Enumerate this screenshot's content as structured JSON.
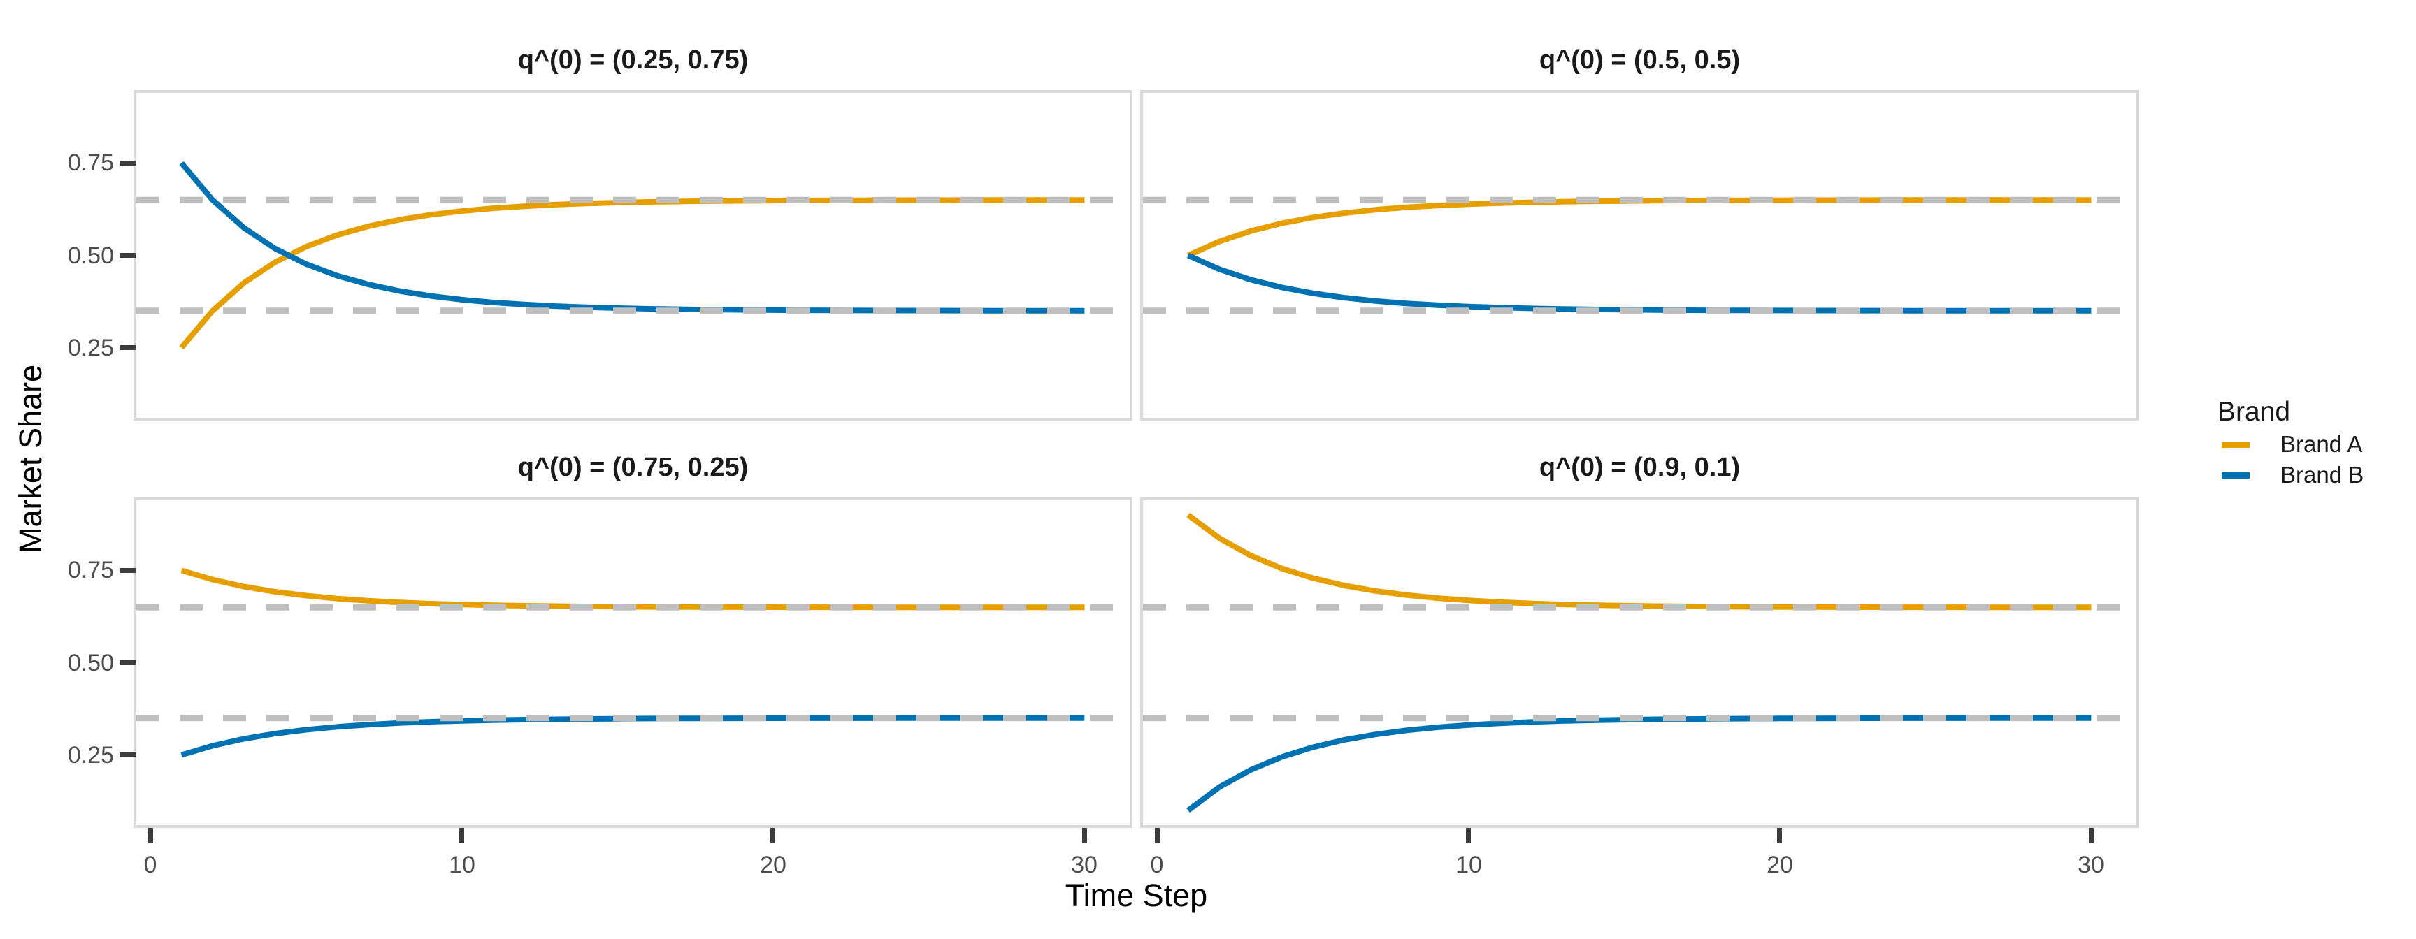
{
  "chart_data": {
    "type": "line",
    "xlabel": "Time Step",
    "ylabel": "Market Share",
    "xlim": [
      -0.45,
      31.45
    ],
    "ylim": [
      0.06,
      0.94
    ],
    "grid": "off",
    "x_ticks": [
      0,
      10,
      20,
      30
    ],
    "y_ticks": [
      {
        "value": 0.75,
        "label": "0.75"
      },
      {
        "value": 0.5,
        "label": "0.50"
      },
      {
        "value": 0.25,
        "label": "0.25"
      }
    ],
    "equilibrium_lines": [
      0.65,
      0.35
    ],
    "x": [
      1,
      2,
      3,
      4,
      5,
      6,
      7,
      8,
      9,
      10,
      11,
      12,
      13,
      14,
      15,
      16,
      17,
      18,
      19,
      20,
      21,
      22,
      23,
      24,
      25,
      26,
      27,
      28,
      29,
      30
    ],
    "facets": [
      {
        "title": "q^(0) = (0.25, 0.75)",
        "series": [
          {
            "name": "Brand A",
            "values": [
              0.25,
              0.35,
              0.425,
              0.4813,
              0.5234,
              0.5551,
              0.5788,
              0.5966,
              0.61,
              0.62,
              0.6275,
              0.6331,
              0.6373,
              0.6405,
              0.6429,
              0.6447,
              0.646,
              0.647,
              0.6477,
              0.6483,
              0.6487,
              0.649,
              0.6493,
              0.6495,
              0.6496,
              0.6497,
              0.6498,
              0.6498,
              0.6499,
              0.6499
            ]
          },
          {
            "name": "Brand B",
            "values": [
              0.75,
              0.65,
              0.575,
              0.5188,
              0.4766,
              0.4449,
              0.4212,
              0.4034,
              0.39,
              0.38,
              0.3725,
              0.3669,
              0.3627,
              0.3595,
              0.3571,
              0.3553,
              0.354,
              0.353,
              0.3523,
              0.3517,
              0.3513,
              0.351,
              0.3507,
              0.3505,
              0.3504,
              0.3503,
              0.3502,
              0.3502,
              0.3501,
              0.3501
            ]
          }
        ]
      },
      {
        "title": "q^(0) = (0.5, 0.5)",
        "series": [
          {
            "name": "Brand A",
            "values": [
              0.5,
              0.5375,
              0.5656,
              0.5867,
              0.6025,
              0.6144,
              0.6233,
              0.63,
              0.635,
              0.6387,
              0.6416,
              0.6437,
              0.6452,
              0.6464,
              0.6473,
              0.648,
              0.6485,
              0.6489,
              0.6492,
              0.6494,
              0.6495,
              0.6496,
              0.6497,
              0.6498,
              0.6499,
              0.6499,
              0.6499,
              0.6499,
              0.65,
              0.65
            ]
          },
          {
            "name": "Brand B",
            "values": [
              0.5,
              0.4625,
              0.4344,
              0.4133,
              0.3975,
              0.3856,
              0.3767,
              0.37,
              0.365,
              0.3613,
              0.3584,
              0.3563,
              0.3548,
              0.3536,
              0.3527,
              0.352,
              0.3515,
              0.3511,
              0.3508,
              0.3506,
              0.3505,
              0.3504,
              0.3503,
              0.3502,
              0.3501,
              0.3501,
              0.3501,
              0.3501,
              0.35,
              0.35
            ]
          }
        ]
      },
      {
        "title": "q^(0) = (0.75, 0.25)",
        "series": [
          {
            "name": "Brand A",
            "values": [
              0.75,
              0.725,
              0.7063,
              0.6922,
              0.6816,
              0.6737,
              0.6678,
              0.6633,
              0.66,
              0.6575,
              0.6556,
              0.6542,
              0.6532,
              0.6524,
              0.6518,
              0.6513,
              0.651,
              0.6508,
              0.6506,
              0.6504,
              0.6503,
              0.6502,
              0.6502,
              0.6501,
              0.6501,
              0.6501,
              0.6501,
              0.65,
              0.65,
              0.65
            ]
          },
          {
            "name": "Brand B",
            "values": [
              0.25,
              0.275,
              0.2938,
              0.3078,
              0.3184,
              0.3263,
              0.3322,
              0.3367,
              0.34,
              0.3425,
              0.3444,
              0.3458,
              0.3468,
              0.3476,
              0.3482,
              0.3487,
              0.349,
              0.3492,
              0.3494,
              0.3496,
              0.3497,
              0.3498,
              0.3498,
              0.3499,
              0.3499,
              0.3499,
              0.3499,
              0.35,
              0.35,
              0.35
            ]
          }
        ]
      },
      {
        "title": "q^(0) = (0.9, 0.1)",
        "series": [
          {
            "name": "Brand A",
            "values": [
              0.9,
              0.8375,
              0.7906,
              0.7555,
              0.7291,
              0.7093,
              0.6945,
              0.6834,
              0.675,
              0.6688,
              0.6641,
              0.6606,
              0.6579,
              0.6559,
              0.6545,
              0.6533,
              0.6525,
              0.6519,
              0.6514,
              0.6511,
              0.6508,
              0.6506,
              0.6504,
              0.6503,
              0.6503,
              0.6502,
              0.6501,
              0.6501,
              0.6501,
              0.6501
            ]
          },
          {
            "name": "Brand B",
            "values": [
              0.1,
              0.1625,
              0.2094,
              0.2445,
              0.2709,
              0.2907,
              0.3055,
              0.3166,
              0.325,
              0.3312,
              0.3359,
              0.3394,
              0.3421,
              0.3441,
              0.3455,
              0.3467,
              0.3475,
              0.3481,
              0.3486,
              0.3489,
              0.3492,
              0.3494,
              0.3496,
              0.3497,
              0.3497,
              0.3498,
              0.3499,
              0.3499,
              0.3499,
              0.3499
            ]
          }
        ]
      }
    ],
    "legend": {
      "title": "Brand",
      "position": "right",
      "entries": [
        {
          "label": "Brand A",
          "color": "#E69F00"
        },
        {
          "label": "Brand B",
          "color": "#0072B2"
        }
      ]
    },
    "colors": {
      "brand_a": "#E69F00",
      "brand_b": "#0072B2",
      "equilibrium_dash": "#BFBFBF",
      "panel_border": "#D9D9D9",
      "tick_mark": "#3C3C3C",
      "tick_label": "#4D4D4D",
      "text": "#1A1A1A"
    }
  }
}
